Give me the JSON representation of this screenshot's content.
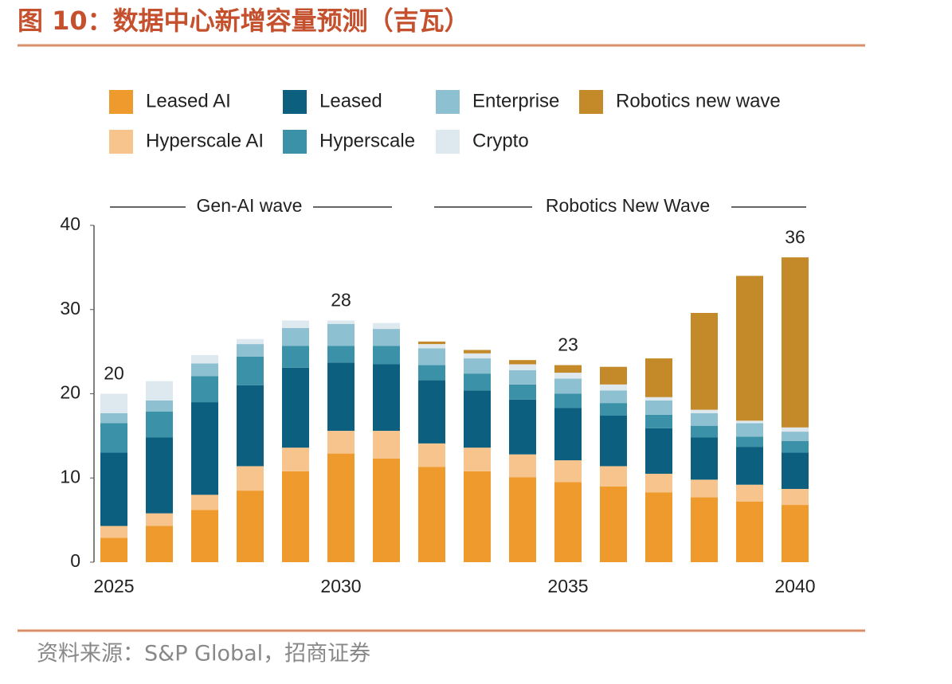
{
  "chart_data": {
    "type": "stacked_bar",
    "title": "图 10：数据中心新增容量预测（吉瓦）",
    "source": "资料来源：S&P Global，招商证券",
    "annotations": [
      "Gen-AI wave",
      "Robotics New Wave"
    ],
    "categories": [
      "2025",
      null,
      null,
      null,
      null,
      "2030",
      null,
      null,
      null,
      null,
      "2035",
      null,
      null,
      null,
      null,
      "2040"
    ],
    "series": [
      {
        "name": "Leased AI",
        "color": "#ee9a2d",
        "values": [
          2.9,
          4.3,
          6.2,
          8.5,
          10.8,
          12.9,
          12.3,
          11.3,
          10.8,
          10.1,
          9.5,
          9.0,
          8.3,
          7.7,
          7.2,
          6.8
        ]
      },
      {
        "name": "Hyperscale AI",
        "color": "#f6c48c",
        "values": [
          1.4,
          1.5,
          1.8,
          2.9,
          2.8,
          2.7,
          3.3,
          2.8,
          2.8,
          2.7,
          2.6,
          2.4,
          2.2,
          2.1,
          2.0,
          1.9
        ]
      },
      {
        "name": "Leased",
        "color": "#0d5f7f",
        "values": [
          8.7,
          9.0,
          11.0,
          9.6,
          9.5,
          8.1,
          7.9,
          7.5,
          6.8,
          6.5,
          6.2,
          6.0,
          5.4,
          5.0,
          4.5,
          4.3
        ]
      },
      {
        "name": "Hyperscale",
        "color": "#3a91a8",
        "values": [
          3.5,
          3.1,
          3.1,
          3.4,
          2.6,
          2.0,
          2.2,
          1.8,
          2.0,
          1.8,
          1.7,
          1.5,
          1.6,
          1.4,
          1.2,
          1.4
        ]
      },
      {
        "name": "Enterprise",
        "color": "#8dc0d0",
        "values": [
          1.2,
          1.3,
          1.5,
          1.5,
          2.1,
          2.6,
          2.0,
          2.0,
          1.8,
          1.7,
          1.8,
          1.5,
          1.7,
          1.5,
          1.6,
          1.1
        ]
      },
      {
        "name": "Crypto",
        "color": "#dde9ef",
        "values": [
          2.3,
          2.3,
          1.0,
          0.6,
          0.9,
          0.4,
          0.7,
          0.5,
          0.6,
          0.7,
          0.7,
          0.7,
          0.4,
          0.4,
          0.3,
          0.5
        ]
      },
      {
        "name": "Robotics new wave",
        "color": "#c48a2a",
        "values": [
          0,
          0,
          0,
          0,
          0,
          0,
          0,
          0.3,
          0.4,
          0.5,
          0.9,
          2.1,
          4.6,
          11.5,
          17.2,
          20.2
        ]
      }
    ],
    "total_labels": [
      20,
      null,
      null,
      null,
      null,
      28,
      null,
      null,
      null,
      null,
      23,
      null,
      null,
      null,
      null,
      36
    ],
    "ylim": [
      0,
      40
    ],
    "yticks": [
      0,
      10,
      20,
      30,
      40
    ]
  }
}
